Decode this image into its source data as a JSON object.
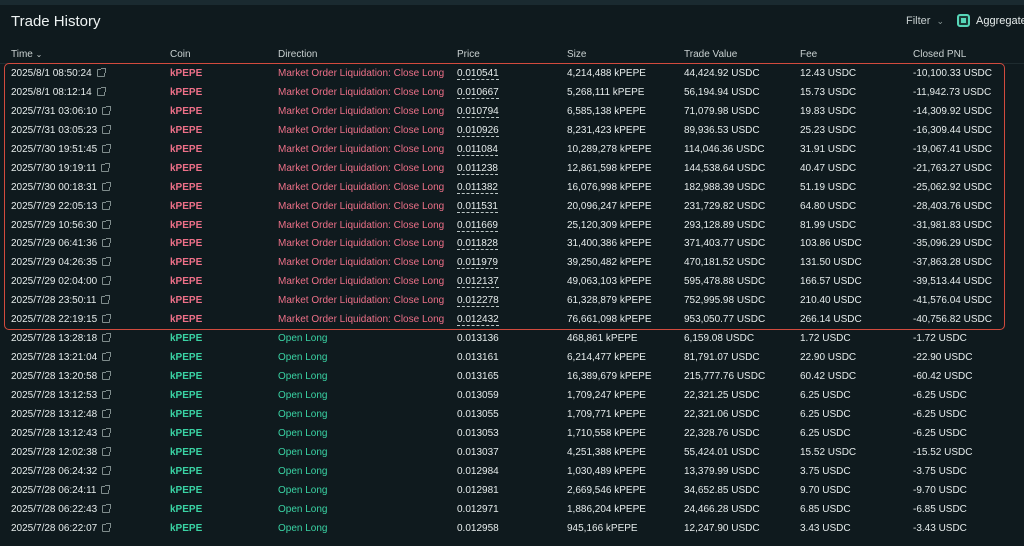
{
  "title": "Trade History",
  "filter_label": "Filter",
  "aggregate_label": "Aggregate",
  "columns": [
    "Time",
    "Coin",
    "Direction",
    "Price",
    "Size",
    "Trade Value",
    "Fee",
    "Closed PNL"
  ],
  "colors": {
    "loss": "#ed7088",
    "gain": "#3ad3a4",
    "highlight_border": "#d24b3e"
  },
  "rows": [
    {
      "time": "2025/8/1 08:50:24",
      "coin": "kPEPE",
      "direction": "Market Order Liquidation: Close Long",
      "price": "0.010541",
      "size": "4,214,488 kPEPE",
      "trade_value": "44,424.92 USDC",
      "fee": "12.43 USDC",
      "pnl": "-10,100.33 USDC",
      "kind": "liq"
    },
    {
      "time": "2025/8/1 08:12:14",
      "coin": "kPEPE",
      "direction": "Market Order Liquidation: Close Long",
      "price": "0.010667",
      "size": "5,268,111 kPEPE",
      "trade_value": "56,194.94 USDC",
      "fee": "15.73 USDC",
      "pnl": "-11,942.73 USDC",
      "kind": "liq"
    },
    {
      "time": "2025/7/31 03:06:10",
      "coin": "kPEPE",
      "direction": "Market Order Liquidation: Close Long",
      "price": "0.010794",
      "size": "6,585,138 kPEPE",
      "trade_value": "71,079.98 USDC",
      "fee": "19.83 USDC",
      "pnl": "-14,309.92 USDC",
      "kind": "liq"
    },
    {
      "time": "2025/7/31 03:05:23",
      "coin": "kPEPE",
      "direction": "Market Order Liquidation: Close Long",
      "price": "0.010926",
      "size": "8,231,423 kPEPE",
      "trade_value": "89,936.53 USDC",
      "fee": "25.23 USDC",
      "pnl": "-16,309.44 USDC",
      "kind": "liq"
    },
    {
      "time": "2025/7/30 19:51:45",
      "coin": "kPEPE",
      "direction": "Market Order Liquidation: Close Long",
      "price": "0.011084",
      "size": "10,289,278 kPEPE",
      "trade_value": "114,046.36 USDC",
      "fee": "31.91 USDC",
      "pnl": "-19,067.41 USDC",
      "kind": "liq"
    },
    {
      "time": "2025/7/30 19:19:11",
      "coin": "kPEPE",
      "direction": "Market Order Liquidation: Close Long",
      "price": "0.011238",
      "size": "12,861,598 kPEPE",
      "trade_value": "144,538.64 USDC",
      "fee": "40.47 USDC",
      "pnl": "-21,763.27 USDC",
      "kind": "liq"
    },
    {
      "time": "2025/7/30 00:18:31",
      "coin": "kPEPE",
      "direction": "Market Order Liquidation: Close Long",
      "price": "0.011382",
      "size": "16,076,998 kPEPE",
      "trade_value": "182,988.39 USDC",
      "fee": "51.19 USDC",
      "pnl": "-25,062.92 USDC",
      "kind": "liq"
    },
    {
      "time": "2025/7/29 22:05:13",
      "coin": "kPEPE",
      "direction": "Market Order Liquidation: Close Long",
      "price": "0.011531",
      "size": "20,096,247 kPEPE",
      "trade_value": "231,729.82 USDC",
      "fee": "64.80 USDC",
      "pnl": "-28,403.76 USDC",
      "kind": "liq"
    },
    {
      "time": "2025/7/29 10:56:30",
      "coin": "kPEPE",
      "direction": "Market Order Liquidation: Close Long",
      "price": "0.011669",
      "size": "25,120,309 kPEPE",
      "trade_value": "293,128.89 USDC",
      "fee": "81.99 USDC",
      "pnl": "-31,981.83 USDC",
      "kind": "liq"
    },
    {
      "time": "2025/7/29 06:41:36",
      "coin": "kPEPE",
      "direction": "Market Order Liquidation: Close Long",
      "price": "0.011828",
      "size": "31,400,386 kPEPE",
      "trade_value": "371,403.77 USDC",
      "fee": "103.86 USDC",
      "pnl": "-35,096.29 USDC",
      "kind": "liq"
    },
    {
      "time": "2025/7/29 04:26:35",
      "coin": "kPEPE",
      "direction": "Market Order Liquidation: Close Long",
      "price": "0.011979",
      "size": "39,250,482 kPEPE",
      "trade_value": "470,181.52 USDC",
      "fee": "131.50 USDC",
      "pnl": "-37,863.28 USDC",
      "kind": "liq"
    },
    {
      "time": "2025/7/29 02:04:00",
      "coin": "kPEPE",
      "direction": "Market Order Liquidation: Close Long",
      "price": "0.012137",
      "size": "49,063,103 kPEPE",
      "trade_value": "595,478.88 USDC",
      "fee": "166.57 USDC",
      "pnl": "-39,513.44 USDC",
      "kind": "liq"
    },
    {
      "time": "2025/7/28 23:50:11",
      "coin": "kPEPE",
      "direction": "Market Order Liquidation: Close Long",
      "price": "0.012278",
      "size": "61,328,879 kPEPE",
      "trade_value": "752,995.98 USDC",
      "fee": "210.40 USDC",
      "pnl": "-41,576.04 USDC",
      "kind": "liq"
    },
    {
      "time": "2025/7/28 22:19:15",
      "coin": "kPEPE",
      "direction": "Market Order Liquidation: Close Long",
      "price": "0.012432",
      "size": "76,661,098 kPEPE",
      "trade_value": "953,050.77 USDC",
      "fee": "266.14 USDC",
      "pnl": "-40,756.82 USDC",
      "kind": "liq"
    },
    {
      "time": "2025/7/28 13:28:18",
      "coin": "kPEPE",
      "direction": "Open Long",
      "price": "0.013136",
      "size": "468,861 kPEPE",
      "trade_value": "6,159.08 USDC",
      "fee": "1.72 USDC",
      "pnl": "-1.72 USDC",
      "kind": "open"
    },
    {
      "time": "2025/7/28 13:21:04",
      "coin": "kPEPE",
      "direction": "Open Long",
      "price": "0.013161",
      "size": "6,214,477 kPEPE",
      "trade_value": "81,791.07 USDC",
      "fee": "22.90 USDC",
      "pnl": "-22.90 USDC",
      "kind": "open"
    },
    {
      "time": "2025/7/28 13:20:58",
      "coin": "kPEPE",
      "direction": "Open Long",
      "price": "0.013165",
      "size": "16,389,679 kPEPE",
      "trade_value": "215,777.76 USDC",
      "fee": "60.42 USDC",
      "pnl": "-60.42 USDC",
      "kind": "open"
    },
    {
      "time": "2025/7/28 13:12:53",
      "coin": "kPEPE",
      "direction": "Open Long",
      "price": "0.013059",
      "size": "1,709,247 kPEPE",
      "trade_value": "22,321.25 USDC",
      "fee": "6.25 USDC",
      "pnl": "-6.25 USDC",
      "kind": "open"
    },
    {
      "time": "2025/7/28 13:12:48",
      "coin": "kPEPE",
      "direction": "Open Long",
      "price": "0.013055",
      "size": "1,709,771 kPEPE",
      "trade_value": "22,321.06 USDC",
      "fee": "6.25 USDC",
      "pnl": "-6.25 USDC",
      "kind": "open"
    },
    {
      "time": "2025/7/28 13:12:43",
      "coin": "kPEPE",
      "direction": "Open Long",
      "price": "0.013053",
      "size": "1,710,558 kPEPE",
      "trade_value": "22,328.76 USDC",
      "fee": "6.25 USDC",
      "pnl": "-6.25 USDC",
      "kind": "open"
    },
    {
      "time": "2025/7/28 12:02:38",
      "coin": "kPEPE",
      "direction": "Open Long",
      "price": "0.013037",
      "size": "4,251,388 kPEPE",
      "trade_value": "55,424.01 USDC",
      "fee": "15.52 USDC",
      "pnl": "-15.52 USDC",
      "kind": "open"
    },
    {
      "time": "2025/7/28 06:24:32",
      "coin": "kPEPE",
      "direction": "Open Long",
      "price": "0.012984",
      "size": "1,030,489 kPEPE",
      "trade_value": "13,379.99 USDC",
      "fee": "3.75 USDC",
      "pnl": "-3.75 USDC",
      "kind": "open"
    },
    {
      "time": "2025/7/28 06:24:11",
      "coin": "kPEPE",
      "direction": "Open Long",
      "price": "0.012981",
      "size": "2,669,546 kPEPE",
      "trade_value": "34,652.85 USDC",
      "fee": "9.70 USDC",
      "pnl": "-9.70 USDC",
      "kind": "open"
    },
    {
      "time": "2025/7/28 06:22:43",
      "coin": "kPEPE",
      "direction": "Open Long",
      "price": "0.012971",
      "size": "1,886,204 kPEPE",
      "trade_value": "24,466.28 USDC",
      "fee": "6.85 USDC",
      "pnl": "-6.85 USDC",
      "kind": "open"
    },
    {
      "time": "2025/7/28 06:22:07",
      "coin": "kPEPE",
      "direction": "Open Long",
      "price": "0.012958",
      "size": "945,166 kPEPE",
      "trade_value": "12,247.90 USDC",
      "fee": "3.43 USDC",
      "pnl": "-3.43 USDC",
      "kind": "open"
    }
  ]
}
